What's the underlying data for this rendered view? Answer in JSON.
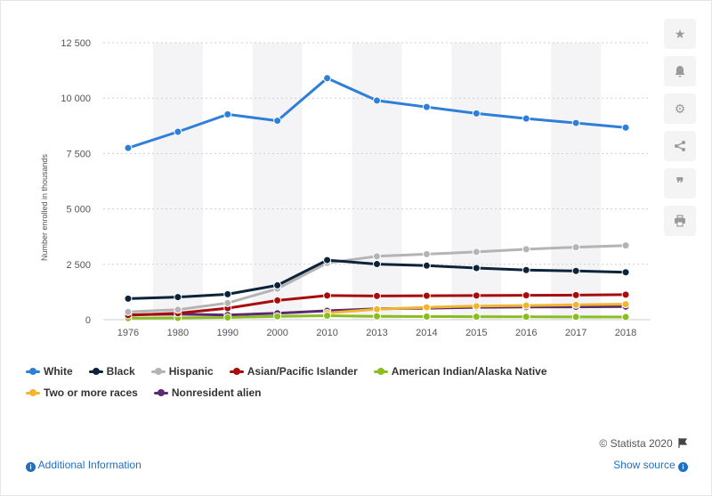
{
  "chart_data": {
    "type": "line",
    "categories": [
      "1976",
      "1980",
      "1990",
      "2000",
      "2010",
      "2013",
      "2014",
      "2015",
      "2016",
      "2017",
      "2018"
    ],
    "ylabel": "Number enrolled in thousands",
    "xlabel": "",
    "ylim": [
      0,
      12500
    ],
    "yticks": [
      0,
      2500,
      5000,
      7500,
      10000,
      12500
    ],
    "ytick_labels": [
      "0",
      "2 500",
      "5 000",
      "7 500",
      "10 000",
      "12 500"
    ],
    "grid": "horizontal dashed, alternating column bands",
    "legend_position": "bottom",
    "series": [
      {
        "name": "White",
        "color": "#2f7ed8",
        "values": [
          7750,
          8480,
          9270,
          8980,
          10900,
          9890,
          9600,
          9310,
          9080,
          8880,
          8670
        ]
      },
      {
        "name": "Black",
        "color": "#0d233a",
        "values": [
          950,
          1020,
          1150,
          1550,
          2690,
          2510,
          2440,
          2330,
          2240,
          2200,
          2140
        ]
      },
      {
        "name": "Hispanic",
        "color": "#b4b4b4",
        "values": [
          350,
          450,
          750,
          1400,
          2560,
          2860,
          2960,
          3060,
          3180,
          3270,
          3350
        ]
      },
      {
        "name": "Asian/Pacific Islander",
        "color": "#a80d0d",
        "values": [
          200,
          290,
          520,
          870,
          1090,
          1070,
          1080,
          1090,
          1100,
          1110,
          1130
        ]
      },
      {
        "name": "American Indian/Alaska Native",
        "color": "#8bbc21",
        "values": [
          70,
          80,
          100,
          150,
          180,
          150,
          140,
          135,
          130,
          125,
          120
        ]
      },
      {
        "name": "Two or more races",
        "color": "#f2b531",
        "values": [
          null,
          null,
          null,
          null,
          300,
          470,
          560,
          610,
          640,
          670,
          700
        ]
      },
      {
        "name": "Nonresident alien",
        "color": "#5c2a6e",
        "values": [
          220,
          250,
          210,
          290,
          400,
          490,
          520,
          560,
          570,
          580,
          590
        ]
      }
    ]
  },
  "legend": {
    "row1": [
      "White",
      "Black",
      "Hispanic",
      "Asian/Pacific Islander",
      "American Indian/Alaska Native"
    ],
    "row2": [
      "Two or more races",
      "Nonresident alien"
    ]
  },
  "toolbar": {
    "buttons": [
      "star-icon",
      "bell-icon",
      "gear-icon",
      "share-icon",
      "quote-icon",
      "print-icon"
    ]
  },
  "footer": {
    "credits": "© Statista 2020",
    "additional_info": "Additional Information",
    "show_source": "Show source"
  }
}
